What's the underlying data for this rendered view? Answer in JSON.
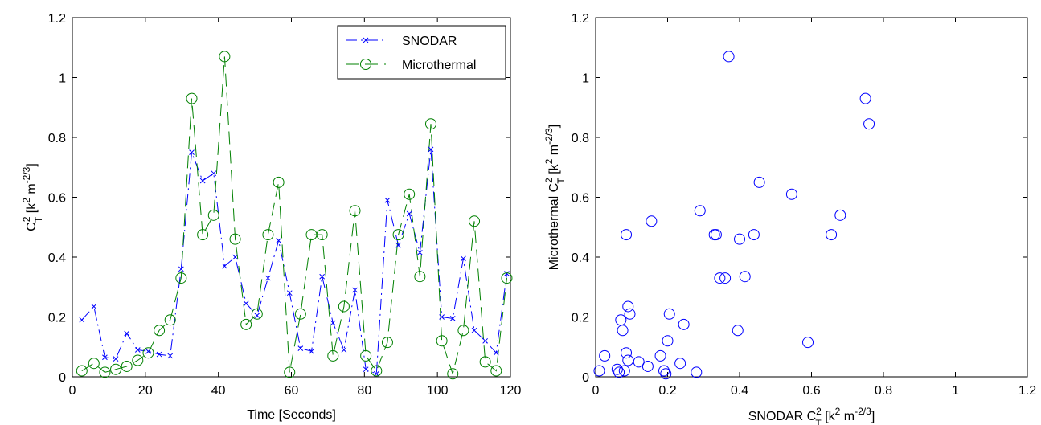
{
  "chart_data": [
    {
      "type": "line",
      "xlabel": "Time [Seconds]",
      "ylabel": {
        "base": "C",
        "sup": "2",
        "sub": "T",
        "rest": " [k",
        "rest_sup": "2",
        "rest2": " m",
        "rest2_sup": "-2/3",
        "end": "]"
      },
      "xlim": [
        0,
        120
      ],
      "ylim": [
        0,
        1.2
      ],
      "xticks": [
        "0",
        "20",
        "40",
        "60",
        "80",
        "100",
        "120"
      ],
      "yticks": [
        "0",
        "0.2",
        "0.4",
        "0.6",
        "0.8",
        "1",
        "1.2"
      ],
      "grid": false,
      "legend_position": "top-right",
      "series": [
        {
          "name": "SNODAR",
          "color": "#0000ff",
          "marker": "x",
          "line_style": "dash-dot",
          "x": [
            2.6,
            5.9,
            8.9,
            11.9,
            14.9,
            17.9,
            20.8,
            23.8,
            26.8,
            29.8,
            32.7,
            35.7,
            38.7,
            41.7,
            44.6,
            47.6,
            50.6,
            53.6,
            56.5,
            59.5,
            62.5,
            65.5,
            68.4,
            71.4,
            74.4,
            77.4,
            80.4,
            83.3,
            86.3,
            89.3,
            92.3,
            95.2,
            98.2,
            101.2,
            104.2,
            107.1,
            110.1,
            113.1,
            116.1,
            119.0
          ],
          "y": [
            0.19,
            0.235,
            0.065,
            0.06,
            0.145,
            0.09,
            0.085,
            0.075,
            0.07,
            0.36,
            0.75,
            0.655,
            0.68,
            0.37,
            0.4,
            0.245,
            0.205,
            0.33,
            0.455,
            0.28,
            0.095,
            0.085,
            0.335,
            0.18,
            0.09,
            0.29,
            0.025,
            0.01,
            0.59,
            0.44,
            0.545,
            0.415,
            0.76,
            0.2,
            0.195,
            0.395,
            0.155,
            0.12,
            0.08,
            0.345
          ]
        },
        {
          "name": "Microthermal",
          "color": "#008000",
          "marker": "o",
          "line_style": "dashed",
          "x": [
            2.6,
            5.9,
            8.9,
            11.9,
            14.9,
            17.9,
            20.8,
            23.8,
            26.8,
            29.8,
            32.7,
            35.7,
            38.7,
            41.7,
            44.6,
            47.6,
            50.6,
            53.6,
            56.5,
            59.5,
            62.5,
            65.5,
            68.4,
            71.4,
            74.4,
            77.4,
            80.4,
            83.3,
            86.3,
            89.3,
            92.3,
            95.2,
            98.2,
            101.2,
            104.2,
            107.1,
            110.1,
            113.1,
            116.1,
            119.0
          ],
          "y": [
            0.02,
            0.045,
            0.015,
            0.025,
            0.035,
            0.055,
            0.08,
            0.155,
            0.19,
            0.33,
            0.93,
            0.475,
            0.54,
            1.07,
            0.46,
            0.175,
            0.21,
            0.475,
            0.65,
            0.015,
            0.21,
            0.475,
            0.475,
            0.07,
            0.235,
            0.555,
            0.07,
            0.02,
            0.115,
            0.475,
            0.61,
            0.335,
            0.845,
            0.12,
            0.01,
            0.155,
            0.52,
            0.05,
            0.02,
            0.33
          ]
        }
      ]
    },
    {
      "type": "scatter",
      "xlabel": {
        "base": "SNODAR C",
        "sup": "2",
        "sub": "T",
        "rest": " [k",
        "rest_sup": "2",
        "rest2": " m",
        "rest2_sup": "-2/3",
        "end": "]"
      },
      "ylabel": {
        "base": "Microthermal C",
        "sup": "2",
        "sub": "T",
        "rest": " [k",
        "rest_sup": "2",
        "rest2": " m",
        "rest2_sup": "-2/3",
        "end": "]"
      },
      "xlim": [
        0,
        1.2
      ],
      "ylim": [
        0,
        1.2
      ],
      "xticks": [
        "0",
        "0.2",
        "0.4",
        "0.6",
        "0.8",
        "1",
        "1.2"
      ],
      "yticks": [
        "0",
        "0.2",
        "0.4",
        "0.6",
        "0.8",
        "1",
        "1.2"
      ],
      "grid": false,
      "series": [
        {
          "color": "#0000ff",
          "marker": "o",
          "x": [
            0.19,
            0.235,
            0.065,
            0.06,
            0.145,
            0.09,
            0.085,
            0.075,
            0.07,
            0.36,
            0.75,
            0.655,
            0.68,
            0.37,
            0.4,
            0.245,
            0.205,
            0.33,
            0.455,
            0.28,
            0.095,
            0.085,
            0.335,
            0.18,
            0.09,
            0.29,
            0.025,
            0.01,
            0.59,
            0.44,
            0.545,
            0.415,
            0.76,
            0.2,
            0.195,
            0.395,
            0.155,
            0.12,
            0.08,
            0.345
          ],
          "y": [
            0.02,
            0.045,
            0.015,
            0.025,
            0.035,
            0.055,
            0.08,
            0.155,
            0.19,
            0.33,
            0.93,
            0.475,
            0.54,
            1.07,
            0.46,
            0.175,
            0.21,
            0.475,
            0.65,
            0.015,
            0.21,
            0.475,
            0.475,
            0.07,
            0.235,
            0.555,
            0.07,
            0.02,
            0.115,
            0.475,
            0.61,
            0.335,
            0.845,
            0.12,
            0.01,
            0.155,
            0.52,
            0.05,
            0.02,
            0.33
          ]
        }
      ]
    }
  ]
}
